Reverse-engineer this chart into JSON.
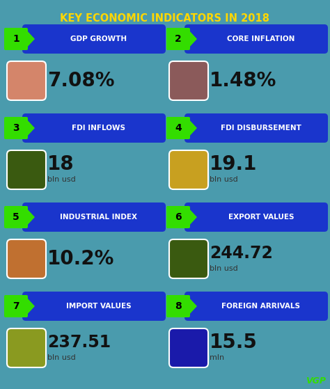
{
  "title": "KEY ECONOMIC INDICATORS IN 2018",
  "title_color": "#FFD700",
  "background_color": "#4A9BAD",
  "bar_color": "#1A35CC",
  "arrow_color": "#33DD00",
  "number_bg": "#33DD00",
  "label_color": "#FFFFFF",
  "value_color": "#111111",
  "subvalue_color": "#333333",
  "watermark": "VGP",
  "watermark_color": "#33DD00",
  "indicators": [
    {
      "num": "1",
      "label": "GDP GROWTH",
      "value": "7.08%",
      "subvalue": "",
      "icon_color": "#D4856A",
      "icon_border": "#C07060"
    },
    {
      "num": "2",
      "label": "CORE INFLATION",
      "value": "1.48%",
      "subvalue": "",
      "icon_color": "#8B5A5A",
      "icon_border": "#7A4A4A"
    },
    {
      "num": "3",
      "label": "FDI INFLOWS",
      "value": "18",
      "subvalue": "bln usd",
      "icon_color": "#3A5A10",
      "icon_border": "#2A4A00"
    },
    {
      "num": "4",
      "label": "FDI DISBURSEMENT",
      "value": "19.1",
      "subvalue": "bln usd",
      "icon_color": "#C8A020",
      "icon_border": "#B89010"
    },
    {
      "num": "5",
      "label": "INDUSTRIAL INDEX",
      "value": "10.2%",
      "subvalue": "",
      "icon_color": "#C07030",
      "icon_border": "#B06020"
    },
    {
      "num": "6",
      "label": "EXPORT VALUES",
      "value": "244.72",
      "subvalue": "bln usd",
      "icon_color": "#3A5A10",
      "icon_border": "#2A4A00"
    },
    {
      "num": "7",
      "label": "IMPORT VALUES",
      "value": "237.51",
      "subvalue": "bln usd",
      "icon_color": "#8A9A20",
      "icon_border": "#7A8A10"
    },
    {
      "num": "8",
      "label": "FOREIGN ARRIVALS",
      "value": "15.5",
      "subvalue": "mln",
      "icon_color": "#1A1AAA",
      "icon_border": "#0A0A99"
    }
  ]
}
